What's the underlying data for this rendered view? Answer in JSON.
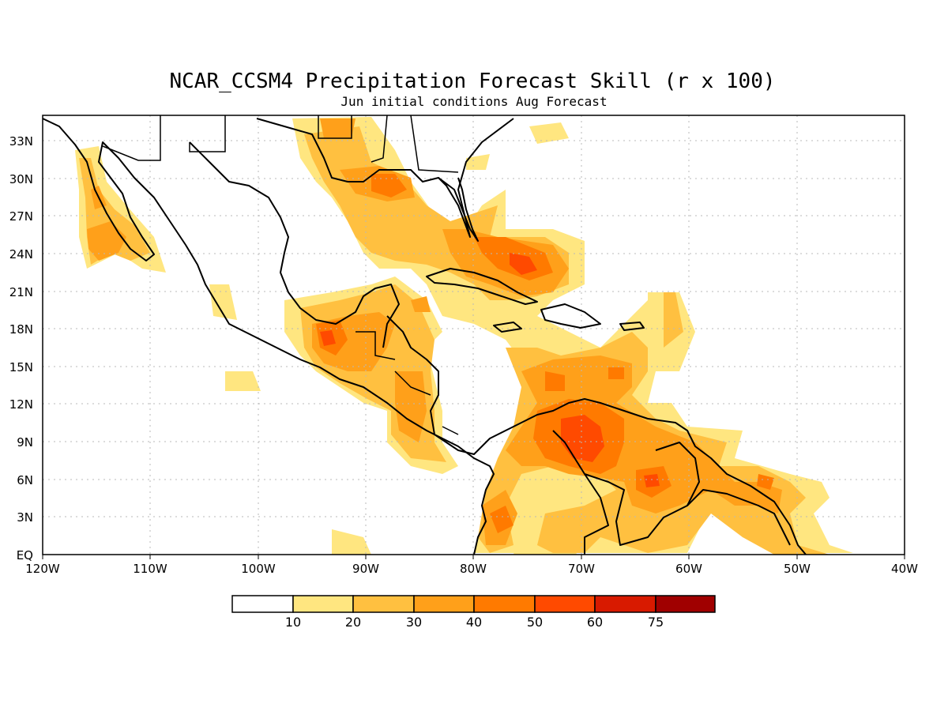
{
  "map": {
    "title": "NCAR_CCSM4 Precipitation Forecast Skill (r x 100)",
    "subtitle": "Jun initial conditions  Aug Forecast",
    "extent": {
      "lon": [
        -120,
        -40
      ],
      "lat": [
        0,
        35
      ]
    },
    "x_ticks": [
      "120W",
      "110W",
      "100W",
      "90W",
      "80W",
      "70W",
      "60W",
      "50W",
      "40W"
    ],
    "y_ticks": [
      "EQ",
      "3N",
      "6N",
      "9N",
      "12N",
      "15N",
      "18N",
      "21N",
      "24N",
      "27N",
      "30N",
      "33N"
    ],
    "grid": true,
    "colorbar": {
      "levels": [
        "10",
        "20",
        "30",
        "40",
        "50",
        "60",
        "75"
      ],
      "colors": [
        "#ffffff",
        "#ffe680",
        "#ffc040",
        "#ffa01a",
        "#ff7a00",
        "#ff4a00",
        "#d81a00",
        "#a00000"
      ]
    }
  }
}
